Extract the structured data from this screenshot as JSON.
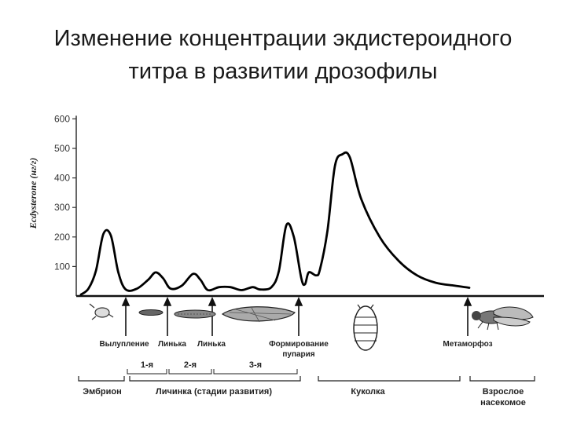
{
  "title": {
    "line1": "Изменение концентрации экдистероидного",
    "line2": "титра в развитии дрозофилы"
  },
  "chart_data": {
    "type": "line",
    "ylabel": "Ecdysterone (нг/г)",
    "ylim": [
      0,
      600
    ],
    "yticks": [
      100,
      200,
      300,
      400,
      500,
      600
    ],
    "xlabel": "",
    "grid": false,
    "series": [
      {
        "values": [
          [
            0,
            5
          ],
          [
            2,
            25
          ],
          [
            4,
            85
          ],
          [
            6,
            210
          ],
          [
            8,
            205
          ],
          [
            10,
            80
          ],
          [
            12,
            22
          ],
          [
            15,
            25
          ],
          [
            18,
            55
          ],
          [
            20,
            80
          ],
          [
            22,
            60
          ],
          [
            24,
            25
          ],
          [
            27,
            35
          ],
          [
            30,
            75
          ],
          [
            32,
            55
          ],
          [
            34,
            20
          ],
          [
            37,
            30
          ],
          [
            40,
            30
          ],
          [
            43,
            20
          ],
          [
            46,
            30
          ],
          [
            48,
            22
          ],
          [
            51,
            30
          ],
          [
            53,
            85
          ],
          [
            55,
            240
          ],
          [
            57,
            200
          ],
          [
            59,
            60
          ],
          [
            60,
            40
          ],
          [
            61,
            80
          ],
          [
            63,
            70
          ],
          [
            64,
            90
          ],
          [
            66,
            220
          ],
          [
            68,
            440
          ],
          [
            70,
            480
          ],
          [
            72,
            470
          ],
          [
            75,
            330
          ],
          [
            80,
            200
          ],
          [
            85,
            120
          ],
          [
            90,
            70
          ],
          [
            95,
            45
          ],
          [
            100,
            35
          ],
          [
            104,
            28
          ]
        ]
      }
    ],
    "events": [
      "Вылупление",
      "Линька",
      "Линька",
      "Формирование пупария",
      "Метаморфоз"
    ],
    "instars": [
      "1-я",
      "2-я",
      "3-я"
    ],
    "stages": [
      {
        "label": "Эмбрион"
      },
      {
        "label": "Личинка (стадии развития)"
      },
      {
        "label": "Куколка"
      },
      {
        "label": "Взрослое насекомое"
      }
    ]
  }
}
